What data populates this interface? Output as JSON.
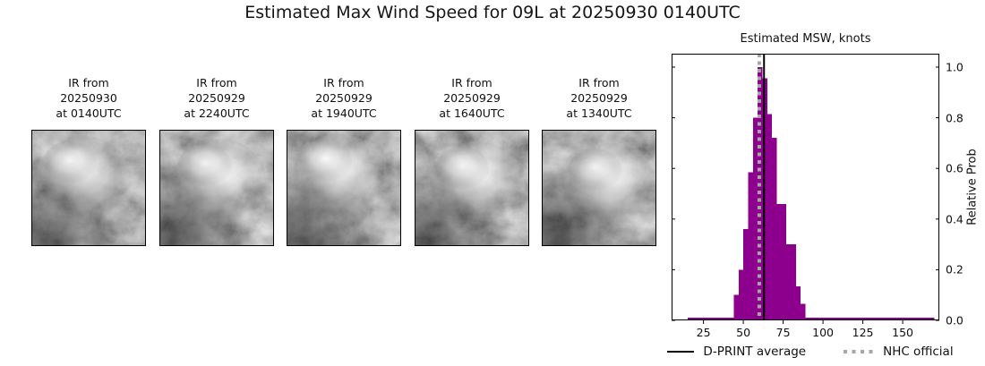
{
  "page_title": "Estimated Max Wind Speed for 09L at 20250930 0140UTC",
  "panels": [
    {
      "label_lines": [
        "IR from",
        "20250930",
        "at 0140UTC"
      ]
    },
    {
      "label_lines": [
        "IR from",
        "20250929",
        "at 2240UTC"
      ]
    },
    {
      "label_lines": [
        "IR from",
        "20250929",
        "at 1940UTC"
      ]
    },
    {
      "label_lines": [
        "IR from",
        "20250929",
        "at 1640UTC"
      ]
    },
    {
      "label_lines": [
        "IR from",
        "20250929",
        "at 1340UTC"
      ]
    }
  ],
  "chart_data": {
    "type": "bar",
    "title": "Estimated MSW, knots",
    "ylabel": "Relative Prob",
    "xlabel": "",
    "xlim": [
      5,
      173
    ],
    "ylim": [
      0,
      1.053
    ],
    "xticks": [
      25,
      50,
      75,
      100,
      125,
      150
    ],
    "yticks": [
      0,
      0.2,
      0.4,
      0.6,
      0.8,
      1.0
    ],
    "ytick_labels": [
      "0.0",
      "0.2",
      "0.4",
      "0.6",
      "0.8",
      "1.0"
    ],
    "grid": false,
    "bar_color": "#8d008d",
    "bars": [
      {
        "x0": 15,
        "x1": 44,
        "v": 0.01
      },
      {
        "x0": 44,
        "x1": 47,
        "v": 0.1
      },
      {
        "x0": 47,
        "x1": 50,
        "v": 0.2
      },
      {
        "x0": 50,
        "x1": 53,
        "v": 0.36
      },
      {
        "x0": 53,
        "x1": 56,
        "v": 0.585
      },
      {
        "x0": 56,
        "x1": 59,
        "v": 0.8
      },
      {
        "x0": 59,
        "x1": 62,
        "v": 1.0
      },
      {
        "x0": 62,
        "x1": 65,
        "v": 0.955
      },
      {
        "x0": 65,
        "x1": 68,
        "v": 0.815
      },
      {
        "x0": 68,
        "x1": 71,
        "v": 0.72
      },
      {
        "x0": 71,
        "x1": 77,
        "v": 0.46
      },
      {
        "x0": 77,
        "x1": 83,
        "v": 0.3
      },
      {
        "x0": 83,
        "x1": 86,
        "v": 0.135
      },
      {
        "x0": 86,
        "x1": 89,
        "v": 0.065
      },
      {
        "x0": 89,
        "x1": 170,
        "v": 0.01
      }
    ],
    "vlines": [
      {
        "x": 63,
        "style": "solid",
        "color": "#000000",
        "name": "dprint-average-line"
      },
      {
        "x": 60,
        "style": "dotted",
        "color": "#a6a6a6",
        "name": "nhc-official-line"
      }
    ],
    "legend": [
      {
        "label": "D-PRINT average",
        "style": "solid",
        "color": "#000000"
      },
      {
        "label": "NHC official",
        "style": "dotted",
        "color": "#a6a6a6"
      }
    ],
    "legend_position": "below-axis"
  }
}
